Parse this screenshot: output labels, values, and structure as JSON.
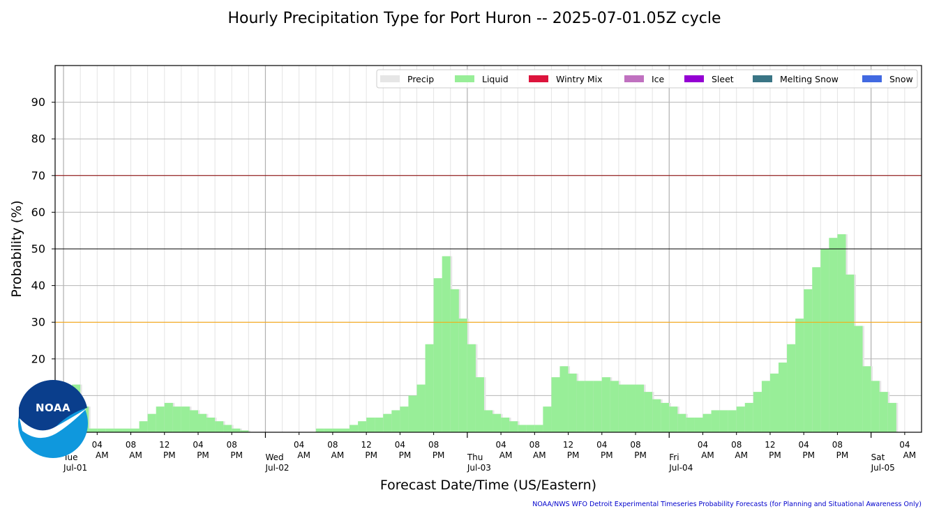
{
  "chart_data": {
    "type": "bar",
    "title": "Hourly Precipitation Type for Port Huron -- 2025-07-01.05Z cycle",
    "xlabel": "Forecast Date/Time (US/Eastern)",
    "ylabel": "Probability (%)",
    "ylim": [
      0,
      100
    ],
    "yticks": [
      20,
      30,
      40,
      50,
      60,
      70,
      80,
      90
    ],
    "grid": true,
    "legend_position": "top-right",
    "x_start": "2025-07-01 01:00",
    "x_step_hours": 1,
    "x_range": [
      "2025-06-30 23:00",
      "2025-07-05 06:00"
    ],
    "reference_lines": [
      {
        "value": 70,
        "color": "#8b0000"
      },
      {
        "value": 50,
        "color": "#000000"
      },
      {
        "value": 30,
        "color": "#ffa500"
      }
    ],
    "day_labels": [
      {
        "dow": "Tue",
        "date": "Jul-01",
        "time": "2025-07-01 00:00"
      },
      {
        "dow": "Wed",
        "date": "Jul-02",
        "time": "2025-07-02 00:00"
      },
      {
        "dow": "Thu",
        "date": "Jul-03",
        "time": "2025-07-03 00:00"
      },
      {
        "dow": "Fri",
        "date": "Jul-04",
        "time": "2025-07-04 00:00"
      },
      {
        "dow": "Sat",
        "date": "Jul-05",
        "time": "2025-07-05 00:00"
      }
    ],
    "hour_labels": [
      {
        "hour": "04",
        "ampm": "AM",
        "h": 4
      },
      {
        "hour": "08",
        "ampm": "AM",
        "h": 8
      },
      {
        "hour": "12",
        "ampm": "PM",
        "h": 12
      },
      {
        "hour": "04",
        "ampm": "PM",
        "h": 16
      },
      {
        "hour": "08",
        "ampm": "PM",
        "h": 20
      }
    ],
    "series": [
      {
        "name": "Precip",
        "color": "#e6e6e6"
      },
      {
        "name": "Liquid",
        "color": "#98ee98",
        "values": [
          13,
          7,
          1,
          1,
          1,
          1,
          1,
          1,
          3,
          5,
          7,
          8,
          7,
          7,
          6,
          5,
          4,
          3,
          2,
          1,
          0.5,
          0,
          0,
          0,
          0,
          0,
          0,
          0,
          0,
          1,
          1,
          1,
          1,
          2,
          3,
          4,
          4,
          5,
          6,
          7,
          10,
          13,
          24,
          42,
          48,
          39,
          31,
          24,
          15,
          6,
          5,
          4,
          3,
          2,
          2,
          2,
          7,
          15,
          18,
          16,
          14,
          14,
          14,
          15,
          14,
          13,
          13,
          13,
          11,
          9,
          8,
          7,
          5,
          4,
          4,
          5,
          6,
          6,
          6,
          7,
          8,
          11,
          14,
          16,
          19,
          24,
          31,
          39,
          45,
          50,
          53,
          54,
          43,
          29,
          18,
          14,
          11,
          8
        ]
      },
      {
        "name": "Wintry Mix",
        "color": "#dc143c"
      },
      {
        "name": "Ice",
        "color": "#c071c0"
      },
      {
        "name": "Sleet",
        "color": "#9400d3"
      },
      {
        "name": "Melting Snow",
        "color": "#3a7585"
      },
      {
        "name": "Snow",
        "color": "#4169e1"
      }
    ]
  },
  "logo": {
    "text": "NOAA"
  },
  "footer": "NOAA/NWS WFO Detroit Experimental Timeseries Probability Forecasts (for Planning and Situational Awareness Only)"
}
